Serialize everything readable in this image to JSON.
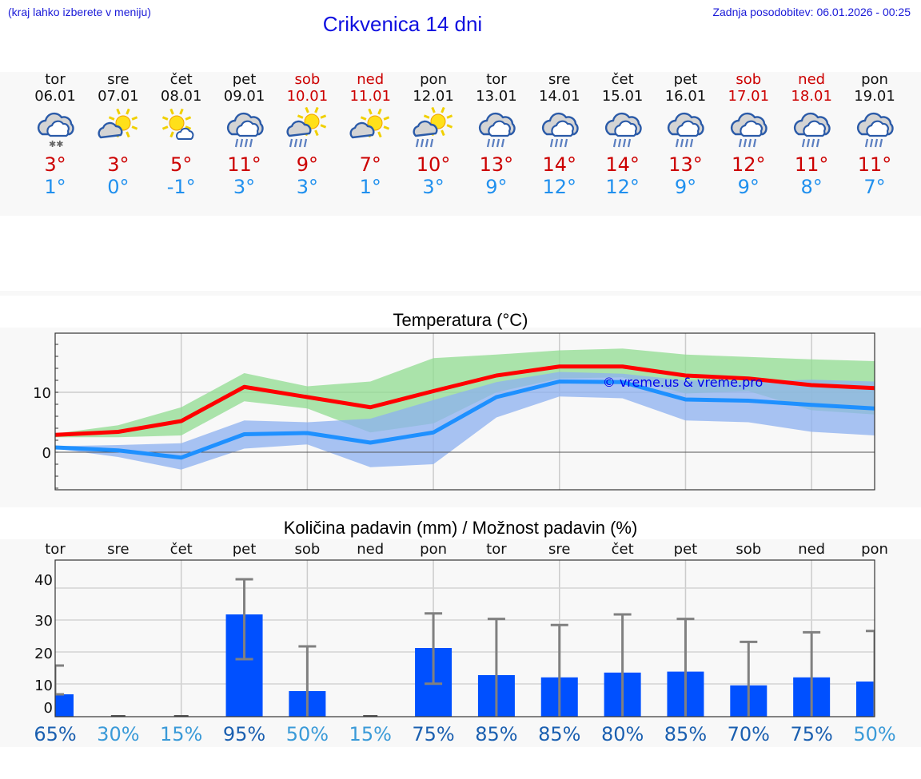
{
  "header": {
    "hint": "(kraj lahko izberete v meniju)",
    "title": "Crikvenica 14 dni",
    "last_update": "Zadnja posodobitev: 06.01.2026 - 00:25"
  },
  "days": [
    {
      "name": "tor",
      "date": "06.01",
      "icon": "cloud-snow-icon",
      "tmax": "3°",
      "tmin": "1°",
      "weekend": false
    },
    {
      "name": "sre",
      "date": "07.01",
      "icon": "sun-cloud-icon",
      "tmax": "3°",
      "tmin": "0°",
      "weekend": false
    },
    {
      "name": "čet",
      "date": "08.01",
      "icon": "sun-small-cloud-icon",
      "tmax": "5°",
      "tmin": "-1°",
      "weekend": false
    },
    {
      "name": "pet",
      "date": "09.01",
      "icon": "cloud-rain-icon",
      "tmax": "11°",
      "tmin": "3°",
      "weekend": false
    },
    {
      "name": "sob",
      "date": "10.01",
      "icon": "sun-cloud-rain-icon",
      "tmax": "9°",
      "tmin": "3°",
      "weekend": true
    },
    {
      "name": "ned",
      "date": "11.01",
      "icon": "sun-cloud-icon",
      "tmax": "7°",
      "tmin": "1°",
      "weekend": true
    },
    {
      "name": "pon",
      "date": "12.01",
      "icon": "sun-cloud-rain-icon",
      "tmax": "10°",
      "tmin": "3°",
      "weekend": false
    },
    {
      "name": "tor",
      "date": "13.01",
      "icon": "cloud-rain-icon",
      "tmax": "13°",
      "tmin": "9°",
      "weekend": false
    },
    {
      "name": "sre",
      "date": "14.01",
      "icon": "cloud-rain-icon",
      "tmax": "14°",
      "tmin": "12°",
      "weekend": false
    },
    {
      "name": "čet",
      "date": "15.01",
      "icon": "cloud-rain-icon",
      "tmax": "14°",
      "tmin": "12°",
      "weekend": false
    },
    {
      "name": "pet",
      "date": "16.01",
      "icon": "cloud-rain-icon",
      "tmax": "13°",
      "tmin": "9°",
      "weekend": false
    },
    {
      "name": "sob",
      "date": "17.01",
      "icon": "cloud-rain-icon",
      "tmax": "12°",
      "tmin": "9°",
      "weekend": true
    },
    {
      "name": "ned",
      "date": "18.01",
      "icon": "cloud-rain-icon",
      "tmax": "11°",
      "tmin": "8°",
      "weekend": true
    },
    {
      "name": "pon",
      "date": "19.01",
      "icon": "cloud-rain-icon",
      "tmax": "11°",
      "tmin": "7°",
      "weekend": false
    }
  ],
  "colors": {
    "tmax_line": "#ff0000",
    "tmin_line": "#1e90ff",
    "tmax_band": "#a8e6a8",
    "tmin_band": "#a8c4f0",
    "overlap_band": "#7cc6a8",
    "bar": "#0050ff",
    "errorbar": "#808080",
    "weekend": "#cc0000",
    "tmin_text": "#2090ee",
    "tmax_text": "#cc0000",
    "pct_high": "#1a5fb0",
    "pct_low": "#3a9ad8"
  },
  "chart_data": [
    {
      "type": "line",
      "title": "Temperatura (°C)",
      "xlabel": "",
      "ylabel": "",
      "x": [
        "06.01",
        "07.01",
        "08.01",
        "09.01",
        "10.01",
        "11.01",
        "12.01",
        "13.01",
        "14.01",
        "15.01",
        "16.01",
        "17.01",
        "18.01",
        "19.01"
      ],
      "ylim": [
        -6,
        20
      ],
      "yticks": [
        0,
        10
      ],
      "grid": true,
      "watermark": "© vreme.us & vreme.pro",
      "series": [
        {
          "name": "Tmax",
          "values": [
            2.9,
            3.4,
            5.2,
            10.9,
            9.2,
            7.5,
            10.2,
            12.8,
            14.3,
            14.3,
            12.8,
            12.3,
            11.2,
            10.7
          ],
          "band_low": [
            2.5,
            2.5,
            2.8,
            8.5,
            7.3,
            3.3,
            4.8,
            10.0,
            12.3,
            12.5,
            9.8,
            10.2,
            7.0,
            6.3
          ],
          "band_high": [
            3.1,
            4.5,
            7.5,
            13.2,
            11.0,
            11.8,
            15.7,
            16.3,
            17.0,
            17.3,
            16.3,
            15.9,
            15.5,
            15.2
          ]
        },
        {
          "name": "Tmin",
          "values": [
            0.8,
            0.3,
            -0.9,
            3.0,
            3.2,
            1.6,
            3.3,
            9.2,
            11.8,
            11.7,
            8.8,
            8.6,
            7.9,
            7.3
          ],
          "band_low": [
            0.6,
            -0.8,
            -2.9,
            0.6,
            1.3,
            -2.5,
            -2.0,
            5.8,
            9.3,
            9.0,
            5.3,
            5.0,
            3.4,
            2.8
          ],
          "band_high": [
            1.0,
            1.2,
            1.5,
            5.3,
            5.0,
            5.6,
            8.7,
            11.7,
            13.4,
            13.1,
            12.0,
            11.8,
            12.1,
            11.8
          ]
        }
      ]
    },
    {
      "type": "bar",
      "title": "Količina padavin (mm) / Možnost padavin (%)",
      "categories": [
        "tor",
        "sre",
        "čet",
        "pet",
        "sob",
        "ned",
        "pon",
        "tor",
        "sre",
        "čet",
        "pet",
        "sob",
        "ned",
        "pon"
      ],
      "values": [
        7,
        0,
        0,
        32,
        8,
        0,
        21.5,
        13,
        12.3,
        13.8,
        14.1,
        9.8,
        12.3,
        11
      ],
      "error_low": [
        7,
        0,
        0,
        18,
        0,
        0,
        10.3,
        0,
        0,
        0,
        0,
        0,
        0,
        0
      ],
      "error_high": [
        16,
        0,
        0,
        43,
        22,
        0,
        32.3,
        30.6,
        28.7,
        32,
        30.6,
        23.4,
        26.4,
        26.8
      ],
      "probability": [
        "65%",
        "30%",
        "15%",
        "95%",
        "50%",
        "15%",
        "75%",
        "85%",
        "85%",
        "80%",
        "85%",
        "70%",
        "75%",
        "50%"
      ],
      "ylim": [
        0,
        49
      ],
      "yticks": [
        0,
        10,
        20,
        30,
        40
      ],
      "grid": true
    }
  ]
}
